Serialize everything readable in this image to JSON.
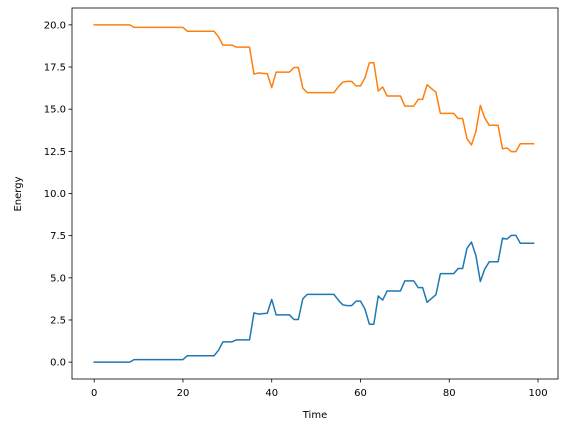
{
  "chart_data": {
    "type": "line",
    "title": "",
    "xlabel": "Time",
    "ylabel": "Energy",
    "xlim": [
      -5,
      104.5
    ],
    "ylim": [
      -1,
      21
    ],
    "grid": false,
    "legend": "none",
    "x_ticks": [
      0,
      20,
      40,
      60,
      80,
      100
    ],
    "y_ticks": [
      0.0,
      2.5,
      5.0,
      7.5,
      10.0,
      12.5,
      15.0,
      17.5,
      20.0
    ],
    "x_tick_labels": [
      "0",
      "20",
      "40",
      "60",
      "80",
      "100"
    ],
    "y_tick_labels": [
      "0.0",
      "2.5",
      "5.0",
      "7.5",
      "10.0",
      "12.5",
      "15.0",
      "17.5",
      "20.0"
    ],
    "series": [
      {
        "color": "#1f77b4",
        "x": [
          0,
          1,
          2,
          3,
          4,
          5,
          6,
          7,
          8,
          9,
          10,
          11,
          12,
          13,
          14,
          15,
          16,
          17,
          18,
          19,
          20,
          21,
          22,
          23,
          24,
          25,
          26,
          27,
          28,
          29,
          30,
          31,
          32,
          33,
          34,
          35,
          36,
          37,
          38,
          39,
          40,
          41,
          42,
          43,
          44,
          45,
          46,
          47,
          48,
          49,
          50,
          51,
          52,
          53,
          54,
          55,
          56,
          57,
          58,
          59,
          60,
          61,
          62,
          63,
          64,
          65,
          66,
          67,
          68,
          69,
          70,
          71,
          72,
          73,
          74,
          75,
          76,
          77,
          78,
          79,
          80,
          81,
          82,
          83,
          84,
          85,
          86,
          87,
          88,
          89,
          90,
          91,
          92,
          93,
          94,
          95,
          96,
          97,
          98,
          99
        ],
        "values": [
          0,
          0,
          0,
          0,
          0,
          0,
          0,
          0,
          0,
          0.15,
          0.15,
          0.15,
          0.15,
          0.15,
          0.15,
          0.15,
          0.15,
          0.15,
          0.15,
          0.15,
          0.15,
          0.38,
          0.38,
          0.38,
          0.38,
          0.38,
          0.38,
          0.38,
          0.7,
          1.2,
          1.2,
          1.2,
          1.32,
          1.32,
          1.32,
          1.32,
          2.92,
          2.85,
          2.88,
          2.9,
          3.72,
          2.8,
          2.8,
          2.8,
          2.8,
          2.53,
          2.53,
          3.75,
          4.02,
          4.02,
          4.02,
          4.02,
          4.02,
          4.02,
          4.02,
          3.68,
          3.4,
          3.35,
          3.35,
          3.62,
          3.62,
          3.15,
          2.25,
          2.25,
          3.92,
          3.68,
          4.22,
          4.22,
          4.22,
          4.22,
          4.82,
          4.82,
          4.82,
          4.42,
          4.42,
          3.55,
          3.78,
          4.0,
          5.25,
          5.25,
          5.25,
          5.25,
          5.55,
          5.55,
          6.75,
          7.12,
          6.32,
          4.78,
          5.52,
          5.95,
          5.95,
          5.95,
          7.35,
          7.3,
          7.52,
          7.52,
          7.05,
          7.05,
          7.05,
          7.05
        ]
      },
      {
        "color": "#ff7f0e",
        "x": [
          0,
          1,
          2,
          3,
          4,
          5,
          6,
          7,
          8,
          9,
          10,
          11,
          12,
          13,
          14,
          15,
          16,
          17,
          18,
          19,
          20,
          21,
          22,
          23,
          24,
          25,
          26,
          27,
          28,
          29,
          30,
          31,
          32,
          33,
          34,
          35,
          36,
          37,
          38,
          39,
          40,
          41,
          42,
          43,
          44,
          45,
          46,
          47,
          48,
          49,
          50,
          51,
          52,
          53,
          54,
          55,
          56,
          57,
          58,
          59,
          60,
          61,
          62,
          63,
          64,
          65,
          66,
          67,
          68,
          69,
          70,
          71,
          72,
          73,
          74,
          75,
          76,
          77,
          78,
          79,
          80,
          81,
          82,
          83,
          84,
          85,
          86,
          87,
          88,
          89,
          90,
          91,
          92,
          93,
          94,
          95,
          96,
          97,
          98,
          99
        ],
        "values": [
          20,
          20,
          20,
          20,
          20,
          20,
          20,
          20,
          20,
          19.85,
          19.85,
          19.85,
          19.85,
          19.85,
          19.85,
          19.85,
          19.85,
          19.85,
          19.85,
          19.85,
          19.85,
          19.62,
          19.62,
          19.62,
          19.62,
          19.62,
          19.62,
          19.62,
          19.3,
          18.8,
          18.8,
          18.8,
          18.68,
          18.68,
          18.68,
          18.68,
          17.08,
          17.15,
          17.12,
          17.1,
          16.28,
          17.2,
          17.2,
          17.2,
          17.2,
          17.47,
          17.47,
          16.25,
          15.98,
          15.98,
          15.98,
          15.98,
          15.98,
          15.98,
          15.98,
          16.32,
          16.6,
          16.65,
          16.65,
          16.38,
          16.38,
          16.85,
          17.75,
          17.75,
          16.08,
          16.32,
          15.78,
          15.78,
          15.78,
          15.78,
          15.18,
          15.18,
          15.18,
          15.58,
          15.58,
          16.45,
          16.22,
          16.0,
          14.75,
          14.75,
          14.75,
          14.75,
          14.45,
          14.45,
          13.25,
          12.88,
          13.68,
          15.22,
          14.48,
          14.05,
          14.05,
          14.05,
          12.65,
          12.7,
          12.48,
          12.48,
          12.95,
          12.95,
          12.95,
          12.95
        ]
      }
    ]
  }
}
